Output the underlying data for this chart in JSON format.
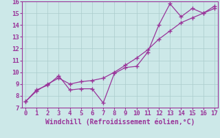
{
  "x": [
    0,
    1,
    2,
    3,
    4,
    5,
    6,
    7,
    8,
    9,
    10,
    11,
    12,
    13,
    14,
    15,
    16,
    17
  ],
  "line1_y": [
    7.5,
    8.5,
    8.9,
    9.7,
    8.5,
    8.6,
    8.6,
    7.4,
    9.9,
    10.4,
    10.5,
    11.7,
    14.0,
    15.8,
    14.7,
    15.4,
    15.0,
    15.6
  ],
  "line2_y": [
    7.5,
    8.4,
    9.0,
    9.5,
    9.0,
    9.2,
    9.3,
    9.5,
    10.0,
    10.6,
    11.2,
    11.9,
    12.8,
    13.5,
    14.2,
    14.6,
    15.0,
    15.4
  ],
  "line_color": "#993399",
  "bg_color": "#cce8e8",
  "grid_color": "#aacccc",
  "xlabel": "Windchill (Refroidissement éolien,°C)",
  "ylim": [
    7,
    16
  ],
  "xlim": [
    -0.3,
    17.3
  ],
  "yticks": [
    7,
    8,
    9,
    10,
    11,
    12,
    13,
    14,
    15,
    16
  ],
  "xticks": [
    0,
    1,
    2,
    3,
    4,
    5,
    6,
    7,
    8,
    9,
    10,
    11,
    12,
    13,
    14,
    15,
    16,
    17
  ],
  "xlabel_fontsize": 7,
  "tick_fontsize": 6.5,
  "marker": "+",
  "markersize": 4,
  "linewidth": 0.9
}
